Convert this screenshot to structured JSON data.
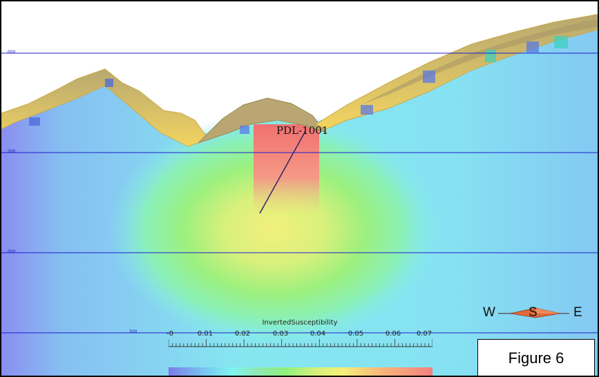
{
  "scene": {
    "elevation_ticks": [
      "000",
      "500",
      "000",
      "500"
    ],
    "drillhole_label": "PDL-1001"
  },
  "colorbar": {
    "title": "InvertedSusceptibility",
    "ticks": [
      "-0",
      "0.01",
      "0.02",
      "0.03",
      "0.04",
      "0.05",
      "0.06",
      "0.07"
    ],
    "colors": [
      "#7b7ae8",
      "#78c8f0",
      "#7ff5ef",
      "#8ee8b0",
      "#8ff07f",
      "#d7f07a",
      "#f6ef78",
      "#f7b87a",
      "#f48080"
    ]
  },
  "compass": {
    "west": "W",
    "south": "S",
    "east": "E"
  },
  "figure": {
    "caption": "Figure 6"
  }
}
